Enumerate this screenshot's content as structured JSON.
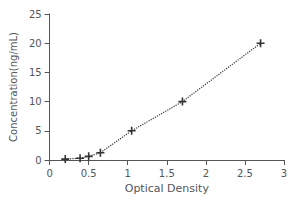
{
  "chart_data": {
    "type": "line",
    "x": [
      0.2,
      0.39,
      0.5,
      0.65,
      1.05,
      1.7,
      2.7
    ],
    "values": [
      0.156,
      0.312,
      0.625,
      1.25,
      5.0,
      10.0,
      20.0
    ],
    "color": "#333333",
    "marker": "plus",
    "line_style": "dotted",
    "xlabel": "Optical Density",
    "ylabel": "Concentration(ng/mL)",
    "xlim": [
      0,
      3
    ],
    "ylim": [
      0,
      25
    ],
    "xticks": [
      0,
      0.5,
      1,
      1.5,
      2,
      2.5,
      3
    ],
    "yticks": [
      0,
      5,
      10,
      15,
      20,
      25
    ],
    "grid": false
  }
}
